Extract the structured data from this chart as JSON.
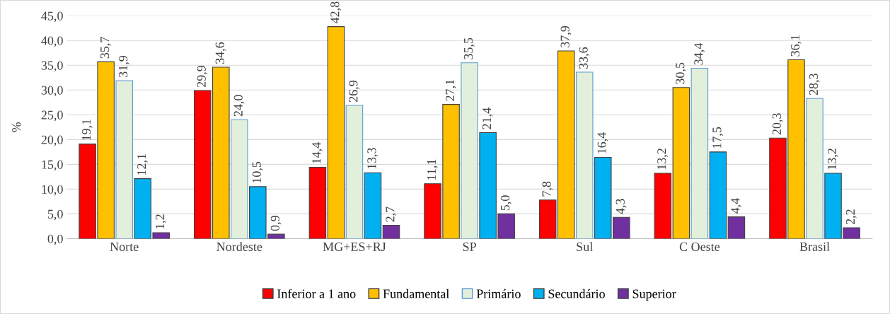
{
  "chart_data": {
    "type": "bar",
    "ylabel": "%",
    "categories": [
      "Norte",
      "Nordeste",
      "MG+ES+RJ",
      "SP",
      "Sul",
      "C Oeste",
      "Brasil"
    ],
    "series": [
      {
        "name": "Inferior a 1 ano",
        "color": "#ff0000",
        "values": [
          19.1,
          29.9,
          14.4,
          11.1,
          7.8,
          13.2,
          20.3
        ],
        "value_labels": [
          "19,1",
          "29,9",
          "14,4",
          "11,1",
          "7,8",
          "13,2",
          "20,3"
        ]
      },
      {
        "name": "Fundamental",
        "color": "#ffc000",
        "values": [
          35.7,
          34.6,
          42.8,
          27.1,
          37.9,
          30.5,
          36.1
        ],
        "value_labels": [
          "35,7",
          "34,6",
          "42,8",
          "27,1",
          "37,9",
          "30,5",
          "36,1"
        ]
      },
      {
        "name": "Primário",
        "color": "#e2efda",
        "values": [
          31.9,
          24.0,
          26.9,
          35.5,
          33.6,
          34.4,
          28.3
        ],
        "value_labels": [
          "31,9",
          "24,0",
          "26,9",
          "35,5",
          "33,6",
          "34,4",
          "28,3"
        ]
      },
      {
        "name": "Secundário",
        "color": "#00b0f0",
        "values": [
          12.1,
          10.5,
          13.3,
          21.4,
          16.4,
          17.5,
          13.2
        ],
        "value_labels": [
          "12,1",
          "10,5",
          "13,3",
          "21,4",
          "16,4",
          "17,5",
          "13,2"
        ]
      },
      {
        "name": "Superior",
        "color": "#7030a0",
        "values": [
          1.2,
          0.9,
          2.7,
          5.0,
          4.3,
          4.4,
          2.2
        ],
        "value_labels": [
          "1,2",
          "0,9",
          "2,7",
          "5,0",
          "4,3",
          "4,4",
          "2,2"
        ]
      }
    ],
    "ylim": [
      0,
      45
    ],
    "yticks": [
      {
        "value": 0,
        "label": "0,0"
      },
      {
        "value": 5,
        "label": "5,0"
      },
      {
        "value": 10,
        "label": "10,0"
      },
      {
        "value": 15,
        "label": "15,0"
      },
      {
        "value": 20,
        "label": "20,0"
      },
      {
        "value": 25,
        "label": "25,0"
      },
      {
        "value": 30,
        "label": "30,0"
      },
      {
        "value": 35,
        "label": "35,0"
      },
      {
        "value": 40,
        "label": "40,0"
      },
      {
        "value": 45,
        "label": "45,0"
      }
    ],
    "grid": "y",
    "legend": "bottom"
  }
}
